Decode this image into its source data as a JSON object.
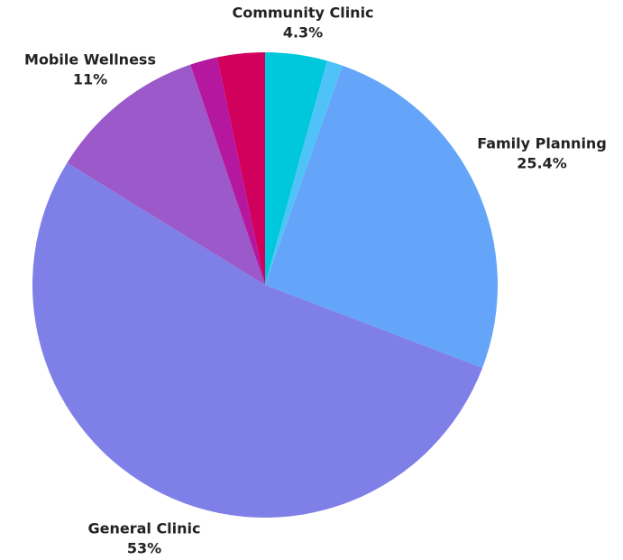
{
  "chart_data": {
    "type": "pie",
    "categories": [
      "Community Clinic",
      null,
      "Family Planning",
      "General Clinic",
      "Mobile Wellness",
      null,
      null
    ],
    "values": [
      4.3,
      1.1,
      25.4,
      53,
      11,
      1.9,
      3.3
    ],
    "value_labels": [
      "4.3%",
      null,
      "25.4%",
      "53%",
      "11%",
      null,
      null
    ],
    "colors": [
      "#00c8dc",
      "#4fc3f7",
      "#64a5fa",
      "#7f7fe8",
      "#9b59c9",
      "#b5179e",
      "#d0005c"
    ]
  }
}
